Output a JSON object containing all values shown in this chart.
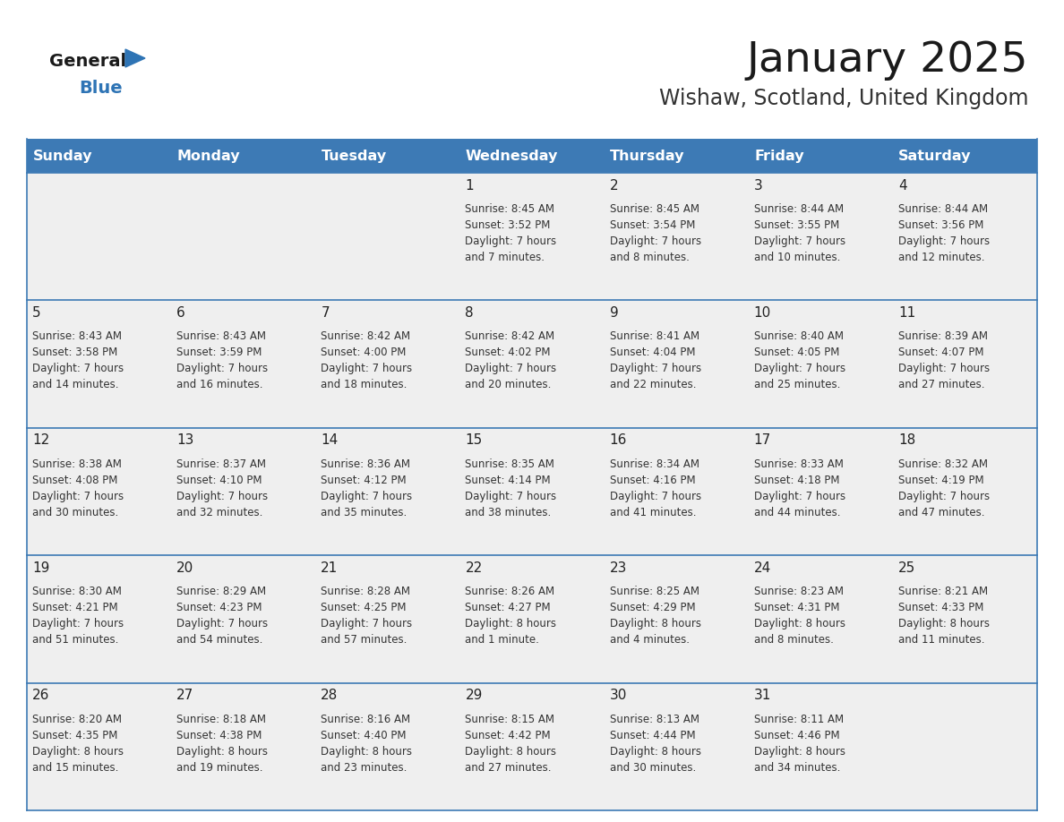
{
  "title": "January 2025",
  "subtitle": "Wishaw, Scotland, United Kingdom",
  "days_of_week": [
    "Sunday",
    "Monday",
    "Tuesday",
    "Wednesday",
    "Thursday",
    "Friday",
    "Saturday"
  ],
  "header_bg": "#3D7AB5",
  "header_text": "#FFFFFF",
  "cell_bg": "#EFEFEF",
  "cell_border_color": "#3D7AB5",
  "row_sep_color": "#3D7AB5",
  "day_num_color": "#222222",
  "text_color": "#333333",
  "title_color": "#1a1a1a",
  "subtitle_color": "#333333",
  "logo_general_color": "#1a1a1a",
  "logo_blue_color": "#2E74B5",
  "weeks": [
    [
      {
        "day": 0,
        "info": ""
      },
      {
        "day": 0,
        "info": ""
      },
      {
        "day": 0,
        "info": ""
      },
      {
        "day": 1,
        "info": "Sunrise: 8:45 AM\nSunset: 3:52 PM\nDaylight: 7 hours\nand 7 minutes."
      },
      {
        "day": 2,
        "info": "Sunrise: 8:45 AM\nSunset: 3:54 PM\nDaylight: 7 hours\nand 8 minutes."
      },
      {
        "day": 3,
        "info": "Sunrise: 8:44 AM\nSunset: 3:55 PM\nDaylight: 7 hours\nand 10 minutes."
      },
      {
        "day": 4,
        "info": "Sunrise: 8:44 AM\nSunset: 3:56 PM\nDaylight: 7 hours\nand 12 minutes."
      }
    ],
    [
      {
        "day": 5,
        "info": "Sunrise: 8:43 AM\nSunset: 3:58 PM\nDaylight: 7 hours\nand 14 minutes."
      },
      {
        "day": 6,
        "info": "Sunrise: 8:43 AM\nSunset: 3:59 PM\nDaylight: 7 hours\nand 16 minutes."
      },
      {
        "day": 7,
        "info": "Sunrise: 8:42 AM\nSunset: 4:00 PM\nDaylight: 7 hours\nand 18 minutes."
      },
      {
        "day": 8,
        "info": "Sunrise: 8:42 AM\nSunset: 4:02 PM\nDaylight: 7 hours\nand 20 minutes."
      },
      {
        "day": 9,
        "info": "Sunrise: 8:41 AM\nSunset: 4:04 PM\nDaylight: 7 hours\nand 22 minutes."
      },
      {
        "day": 10,
        "info": "Sunrise: 8:40 AM\nSunset: 4:05 PM\nDaylight: 7 hours\nand 25 minutes."
      },
      {
        "day": 11,
        "info": "Sunrise: 8:39 AM\nSunset: 4:07 PM\nDaylight: 7 hours\nand 27 minutes."
      }
    ],
    [
      {
        "day": 12,
        "info": "Sunrise: 8:38 AM\nSunset: 4:08 PM\nDaylight: 7 hours\nand 30 minutes."
      },
      {
        "day": 13,
        "info": "Sunrise: 8:37 AM\nSunset: 4:10 PM\nDaylight: 7 hours\nand 32 minutes."
      },
      {
        "day": 14,
        "info": "Sunrise: 8:36 AM\nSunset: 4:12 PM\nDaylight: 7 hours\nand 35 minutes."
      },
      {
        "day": 15,
        "info": "Sunrise: 8:35 AM\nSunset: 4:14 PM\nDaylight: 7 hours\nand 38 minutes."
      },
      {
        "day": 16,
        "info": "Sunrise: 8:34 AM\nSunset: 4:16 PM\nDaylight: 7 hours\nand 41 minutes."
      },
      {
        "day": 17,
        "info": "Sunrise: 8:33 AM\nSunset: 4:18 PM\nDaylight: 7 hours\nand 44 minutes."
      },
      {
        "day": 18,
        "info": "Sunrise: 8:32 AM\nSunset: 4:19 PM\nDaylight: 7 hours\nand 47 minutes."
      }
    ],
    [
      {
        "day": 19,
        "info": "Sunrise: 8:30 AM\nSunset: 4:21 PM\nDaylight: 7 hours\nand 51 minutes."
      },
      {
        "day": 20,
        "info": "Sunrise: 8:29 AM\nSunset: 4:23 PM\nDaylight: 7 hours\nand 54 minutes."
      },
      {
        "day": 21,
        "info": "Sunrise: 8:28 AM\nSunset: 4:25 PM\nDaylight: 7 hours\nand 57 minutes."
      },
      {
        "day": 22,
        "info": "Sunrise: 8:26 AM\nSunset: 4:27 PM\nDaylight: 8 hours\nand 1 minute."
      },
      {
        "day": 23,
        "info": "Sunrise: 8:25 AM\nSunset: 4:29 PM\nDaylight: 8 hours\nand 4 minutes."
      },
      {
        "day": 24,
        "info": "Sunrise: 8:23 AM\nSunset: 4:31 PM\nDaylight: 8 hours\nand 8 minutes."
      },
      {
        "day": 25,
        "info": "Sunrise: 8:21 AM\nSunset: 4:33 PM\nDaylight: 8 hours\nand 11 minutes."
      }
    ],
    [
      {
        "day": 26,
        "info": "Sunrise: 8:20 AM\nSunset: 4:35 PM\nDaylight: 8 hours\nand 15 minutes."
      },
      {
        "day": 27,
        "info": "Sunrise: 8:18 AM\nSunset: 4:38 PM\nDaylight: 8 hours\nand 19 minutes."
      },
      {
        "day": 28,
        "info": "Sunrise: 8:16 AM\nSunset: 4:40 PM\nDaylight: 8 hours\nand 23 minutes."
      },
      {
        "day": 29,
        "info": "Sunrise: 8:15 AM\nSunset: 4:42 PM\nDaylight: 8 hours\nand 27 minutes."
      },
      {
        "day": 30,
        "info": "Sunrise: 8:13 AM\nSunset: 4:44 PM\nDaylight: 8 hours\nand 30 minutes."
      },
      {
        "day": 31,
        "info": "Sunrise: 8:11 AM\nSunset: 4:46 PM\nDaylight: 8 hours\nand 34 minutes."
      },
      {
        "day": 0,
        "info": ""
      }
    ]
  ]
}
